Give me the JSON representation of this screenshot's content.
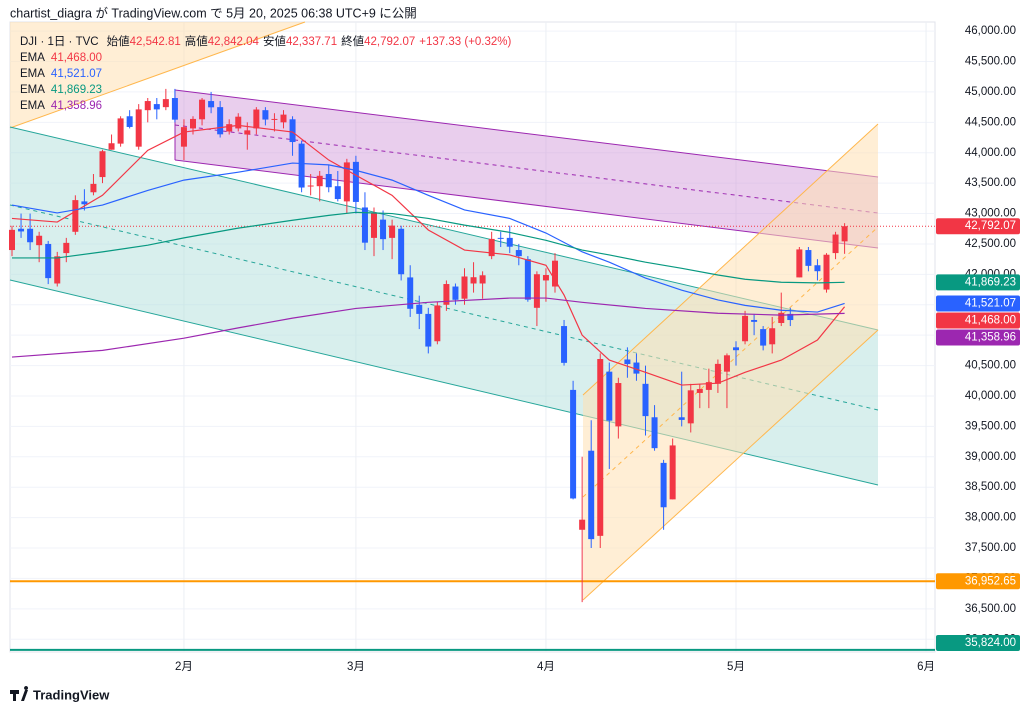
{
  "header": {
    "publisher": "chartist_diagra が TradingView.com で 5月 20, 2025 06:38 UTC+9 に公開"
  },
  "chart_data": {
    "type": "candlestick",
    "symbol": "DJI · 1日 · TVC",
    "ohlc_legend": [
      {
        "name": "始値",
        "text": "42,542.81"
      },
      {
        "name": "高値",
        "text": "42,842.04"
      },
      {
        "name": "安値",
        "text": "42,337.71"
      },
      {
        "name": "終値",
        "text": "42,792.07"
      }
    ],
    "change": "+137.33 (+0.32%)",
    "categories": [
      null,
      null,
      null,
      null,
      null,
      null,
      null,
      null,
      null,
      null,
      null,
      null,
      null,
      null,
      null,
      null,
      null,
      null,
      null,
      "2月",
      null,
      null,
      null,
      null,
      null,
      null,
      null,
      null,
      null,
      null,
      null,
      null,
      null,
      null,
      null,
      null,
      null,
      null,
      "3月",
      null,
      null,
      null,
      null,
      null,
      null,
      null,
      null,
      null,
      null,
      null,
      null,
      null,
      null,
      null,
      null,
      null,
      null,
      null,
      null,
      "4月",
      null,
      null,
      null,
      null,
      null,
      null,
      null,
      null,
      null,
      null,
      null,
      null,
      null,
      null,
      null,
      null,
      null,
      null,
      null,
      null,
      "5月",
      null,
      null,
      null,
      null,
      null,
      null,
      null,
      null,
      null,
      null,
      null,
      null,
      null,
      null,
      null,
      null,
      null,
      null,
      null,
      null,
      "6月"
    ],
    "open": [
      42400,
      42750,
      42750,
      42480,
      42500,
      41850,
      42350,
      42700,
      43200,
      43350,
      43600,
      44050,
      44150,
      44600,
      44100,
      44700,
      44800,
      44750,
      44900,
      44100,
      44400,
      44550,
      44850,
      44750,
      44350,
      44400,
      44300,
      44400,
      44700,
      44550,
      44500,
      44550,
      44150,
      43450,
      43450,
      43650,
      43450,
      43200,
      43850,
      43100,
      42600,
      42900,
      42600,
      42750,
      41950,
      41500,
      41350,
      40900,
      41500,
      41800,
      41600,
      41850,
      41850,
      42300,
      42600,
      42600,
      42400,
      42250,
      41450,
      41900,
      41800,
      41150,
      40100,
      37800,
      39100,
      37700,
      40400,
      39500,
      40600,
      40550,
      40200,
      39650,
      38900,
      38300,
      39650,
      39550,
      40050,
      40100,
      40200,
      40400,
      40800,
      40900,
      41250,
      41100,
      40850,
      41200,
      41350,
      41950,
      42400,
      42150,
      41750,
      42350,
      42542.81,
      null,
      null,
      null,
      null,
      null,
      null,
      null,
      null,
      null
    ],
    "high": [
      42800,
      43000,
      43000,
      42700,
      42550,
      42370,
      42600,
      43300,
      43400,
      43650,
      44050,
      44300,
      44600,
      44700,
      44800,
      44900,
      44900,
      45050,
      45050,
      44550,
      44600,
      44900,
      45000,
      44850,
      44550,
      44650,
      44500,
      44750,
      44750,
      44650,
      44700,
      44600,
      44200,
      43650,
      43700,
      43800,
      43700,
      43900,
      43950,
      43350,
      43100,
      43050,
      42900,
      42800,
      42150,
      41650,
      41450,
      41550,
      41900,
      41850,
      42100,
      42200,
      42050,
      42700,
      42700,
      42800,
      42500,
      42300,
      42050,
      42100,
      42350,
      41250,
      40250,
      39000,
      39600,
      40700,
      40550,
      40300,
      40800,
      40700,
      40500,
      39850,
      38950,
      39300,
      40400,
      40200,
      40200,
      40450,
      40600,
      40700,
      40900,
      41400,
      41350,
      41150,
      41300,
      41700,
      41450,
      42450,
      42450,
      42250,
      42350,
      42700,
      42842.04,
      null,
      null,
      null,
      null,
      null,
      null,
      null,
      null,
      null
    ],
    "low": [
      42300,
      42600,
      42400,
      42200,
      41840,
      41800,
      42200,
      42650,
      43050,
      43300,
      43500,
      44050,
      44100,
      44400,
      44050,
      44500,
      44550,
      44700,
      44500,
      43880,
      44300,
      44450,
      44650,
      44250,
      44300,
      44350,
      44050,
      44300,
      44450,
      44350,
      44400,
      43950,
      43350,
      43300,
      43200,
      43350,
      43200,
      43000,
      43000,
      42400,
      42300,
      42400,
      42250,
      41900,
      41300,
      41100,
      40700,
      40850,
      41400,
      41500,
      41500,
      41700,
      41600,
      42250,
      42450,
      42350,
      42150,
      41550,
      41150,
      41550,
      41700,
      40500,
      38300,
      36611,
      37500,
      37500,
      38800,
      39300,
      40300,
      40250,
      39350,
      39100,
      37800,
      38300,
      39500,
      39400,
      39800,
      39800,
      40050,
      39800,
      40500,
      40850,
      41000,
      40750,
      40700,
      41150,
      41150,
      41950,
      42050,
      41900,
      41700,
      42250,
      42337.71,
      null,
      null,
      null,
      null,
      null,
      null,
      null,
      null,
      null
    ],
    "close": [
      42732,
      42706,
      42528,
      42635,
      41938,
      42297,
      42518,
      43221,
      43153,
      43488,
      44025,
      44156,
      44565,
      44424,
      44713,
      44850,
      44713,
      44882,
      44544,
      44421,
      44556,
      44873,
      44747,
      44303,
      44470,
      44593,
      44368,
      44711,
      44546,
      44556,
      44627,
      44176,
      43428,
      43461,
      43621,
      43433,
      43239,
      43841,
      43191,
      42521,
      43006,
      42579,
      42802,
      42002,
      41434,
      41350,
      40813,
      41489,
      41841,
      41582,
      41965,
      41953,
      41985,
      42583,
      42588,
      42455,
      42300,
      41584,
      42002,
      41989,
      42225,
      40545,
      38315,
      37966,
      37646,
      40608,
      39594,
      40213,
      40525,
      40368,
      39669,
      39142,
      38170,
      39187,
      39607,
      40093,
      40114,
      40228,
      40528,
      40669,
      40753,
      41317,
      41219,
      40829,
      41114,
      41368,
      41249,
      42410,
      42140,
      42052,
      42323,
      42655,
      42792.07,
      null,
      null,
      null,
      null,
      null,
      null,
      null,
      null,
      null
    ],
    "last_price_label": "42,792.07",
    "up_color": "#f23645",
    "down_color": "#2962ff",
    "series": [
      {
        "name": "EMA",
        "color": "#f23645",
        "value_label": "41,468.00",
        "x": [
          0,
          5,
          10,
          15,
          19,
          25,
          31,
          35,
          38,
          42,
          46,
          50,
          55,
          59,
          61,
          63,
          66,
          70,
          74,
          78,
          81,
          85,
          89,
          92
        ],
        "values": [
          42920,
          42860,
          43300,
          44040,
          44340,
          44450,
          44340,
          43880,
          43630,
          43300,
          42730,
          42400,
          42320,
          42150,
          41660,
          41000,
          40590,
          40390,
          40180,
          40210,
          40390,
          40590,
          40920,
          41468
        ]
      },
      {
        "name": "EMA",
        "color": "#2962ff",
        "value_label": "41,521.07",
        "x": [
          0,
          5,
          10,
          15,
          19,
          25,
          31,
          35,
          38,
          42,
          46,
          50,
          55,
          59,
          63,
          66,
          70,
          74,
          78,
          81,
          85,
          89,
          92
        ],
        "values": [
          43140,
          43010,
          43140,
          43380,
          43550,
          43680,
          43830,
          43800,
          43710,
          43550,
          43300,
          43060,
          42920,
          42680,
          42370,
          42200,
          41940,
          41740,
          41580,
          41490,
          41410,
          41380,
          41521.07
        ]
      },
      {
        "name": "EMA",
        "color": "#089981",
        "value_label": "41,869.23",
        "x": [
          0,
          5,
          10,
          15,
          19,
          25,
          31,
          35,
          38,
          42,
          46,
          50,
          55,
          59,
          63,
          66,
          70,
          74,
          78,
          81,
          85,
          89,
          92
        ],
        "values": [
          42270,
          42270,
          42370,
          42480,
          42600,
          42760,
          42890,
          42970,
          43020,
          43000,
          42920,
          42810,
          42690,
          42560,
          42400,
          42320,
          42200,
          42100,
          41990,
          41920,
          41870,
          41860,
          41869.23
        ]
      },
      {
        "name": "EMA",
        "color": "#9c27b0",
        "value_label": "41,358.96",
        "x": [
          0,
          10,
          19,
          25,
          31,
          38,
          46,
          55,
          59,
          63,
          70,
          78,
          85,
          92
        ],
        "values": [
          40640,
          40750,
          40950,
          41120,
          41280,
          41440,
          41540,
          41610,
          41610,
          41540,
          41440,
          41360,
          41330,
          41358.96
        ]
      }
    ],
    "hlines": [
      {
        "value": 36952.65,
        "label": "36,952.65",
        "color": "#ff9800"
      },
      {
        "value": 35824,
        "label": "35,824.00",
        "color": "#089981"
      }
    ],
    "ylim": [
      35790,
      46150
    ],
    "yticks": [
      {
        "value": 36000,
        "label": "36,000.00"
      },
      {
        "value": 36500,
        "label": "36,500.00"
      },
      {
        "value": 37000,
        "label": "37,000.00"
      },
      {
        "value": 37500,
        "label": "37,500.00"
      },
      {
        "value": 38000,
        "label": "38,000.00"
      },
      {
        "value": 38500,
        "label": "38,500.00"
      },
      {
        "value": 39000,
        "label": "39,000.00"
      },
      {
        "value": 39500,
        "label": "39,500.00"
      },
      {
        "value": 40000,
        "label": "40,000.00"
      },
      {
        "value": 40500,
        "label": "40,500.00"
      },
      {
        "value": 41000,
        "label": "41,000.00"
      },
      {
        "value": 41500,
        "label": "41,500.00"
      },
      {
        "value": 42000,
        "label": "42,000.00"
      },
      {
        "value": 42500,
        "label": "42,500.00"
      },
      {
        "value": 43000,
        "label": "43,000.00"
      },
      {
        "value": 43500,
        "label": "43,500.00"
      },
      {
        "value": 44000,
        "label": "44,000.00"
      },
      {
        "value": 44500,
        "label": "44,500.00"
      },
      {
        "value": 45000,
        "label": "45,000.00"
      },
      {
        "value": 45500,
        "label": "45,500.00"
      },
      {
        "value": 46000,
        "label": "46,000.00"
      }
    ],
    "grid": true
  },
  "footer": {
    "brand": "TradingView"
  }
}
